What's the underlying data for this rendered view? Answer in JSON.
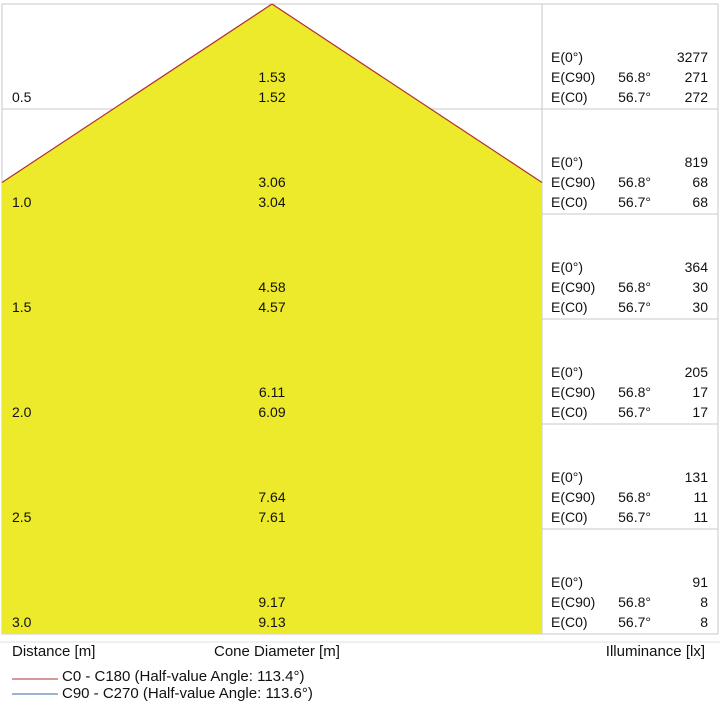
{
  "chart_data": {
    "type": "table",
    "rows": [
      {
        "distance": "0.5",
        "d1": "1.53",
        "d2": "1.52",
        "e0": "3277",
        "ec90": "271",
        "ec0": "272"
      },
      {
        "distance": "1.0",
        "d1": "3.06",
        "d2": "3.04",
        "e0": "819",
        "ec90": "68",
        "ec0": "68"
      },
      {
        "distance": "1.5",
        "d1": "4.58",
        "d2": "4.57",
        "e0": "364",
        "ec90": "30",
        "ec0": "30"
      },
      {
        "distance": "2.0",
        "d1": "6.11",
        "d2": "6.09",
        "e0": "205",
        "ec90": "17",
        "ec0": "17"
      },
      {
        "distance": "2.5",
        "d1": "7.64",
        "d2": "7.61",
        "e0": "131",
        "ec90": "11",
        "ec0": "11"
      },
      {
        "distance": "3.0",
        "d1": "9.17",
        "d2": "9.13",
        "e0": "91",
        "ec90": "8",
        "ec0": "8"
      }
    ],
    "row_labels": {
      "e0": "E(0°)",
      "ec90": "E(C90)",
      "ec0": "E(C0)"
    },
    "angles": {
      "c90": "56.8°",
      "c0": "56.7°"
    },
    "column_titles": {
      "distance": "Distance [m]",
      "diameter": "Cone Diameter [m]",
      "illuminance": "Illuminance [lx]"
    },
    "legend": [
      {
        "name": "C0 - C180 (Half-value Angle: 113.4°)",
        "color": "#b03030"
      },
      {
        "name": "C90 - C270 (Half-value Angle: 113.6°)",
        "color": "#3a6aa8"
      }
    ],
    "colors": {
      "cone": "#ecea2a",
      "grid": "#c8c8c8"
    }
  }
}
